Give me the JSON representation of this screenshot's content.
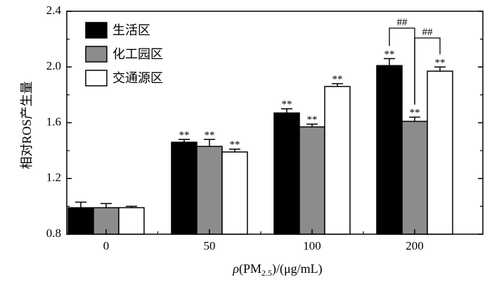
{
  "chart_data": {
    "type": "bar",
    "xlabel_parts": {
      "rho": "ρ",
      "pm_open": "(PM",
      "pm_sub": "2.5",
      "pm_close": ")/(μg/mL)"
    },
    "ylabel": "相对ROS产生量",
    "ylim": [
      0.8,
      2.4
    ],
    "yticks": [
      "0.8",
      "1.2",
      "1.6",
      "2.0",
      "2.4"
    ],
    "ytick_values": [
      0.8,
      1.2,
      1.6,
      2.0,
      2.4
    ],
    "categories": [
      "0",
      "50",
      "100",
      "200"
    ],
    "legend_position": "top-left",
    "series": [
      {
        "name": "生活区",
        "color": "#000000",
        "values": [
          0.99,
          1.46,
          1.67,
          2.01
        ],
        "errors": [
          0.04,
          0.02,
          0.03,
          0.05
        ]
      },
      {
        "name": "化工园区",
        "color": "#8c8c8c",
        "values": [
          0.99,
          1.43,
          1.57,
          1.61
        ],
        "errors": [
          0.03,
          0.05,
          0.02,
          0.03
        ]
      },
      {
        "name": "交通源区",
        "color": "#ffffff",
        "values": [
          0.99,
          1.39,
          1.86,
          1.97
        ],
        "errors": [
          0.01,
          0.02,
          0.02,
          0.03
        ]
      }
    ],
    "significance": [
      [
        "",
        "**",
        "**",
        "**"
      ],
      [
        "",
        "**",
        "**",
        "**"
      ],
      [
        "",
        "**",
        "**",
        "**"
      ]
    ],
    "brackets": [
      {
        "from_series": 0,
        "to_series": 1,
        "category": 3,
        "label": "##"
      },
      {
        "from_series": 1,
        "to_series": 2,
        "category": 3,
        "label": "##"
      }
    ]
  }
}
